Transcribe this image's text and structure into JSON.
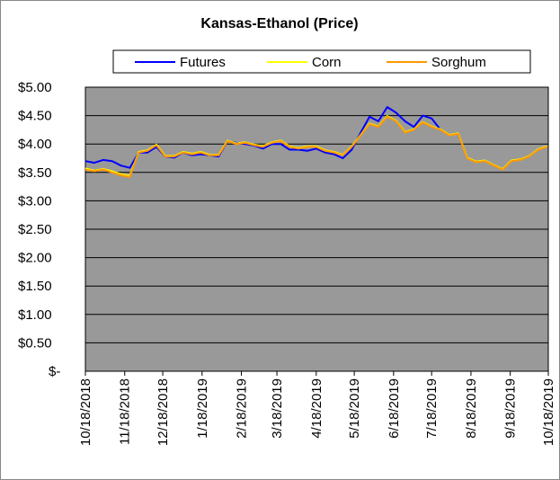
{
  "chart_data": {
    "type": "line",
    "title": "Kansas-Ethanol (Price)",
    "x": [
      "10/18/2018",
      "10/25/2018",
      "11/1/2018",
      "11/8/2018",
      "11/15/2018",
      "11/22/2018",
      "11/29/2018",
      "12/6/2018",
      "12/13/2018",
      "12/20/2018",
      "12/27/2018",
      "1/3/2019",
      "1/10/2019",
      "1/17/2019",
      "1/24/2019",
      "1/31/2019",
      "2/7/2019",
      "2/14/2019",
      "2/21/2019",
      "2/28/2019",
      "3/7/2019",
      "3/14/2019",
      "3/21/2019",
      "3/28/2019",
      "4/4/2019",
      "4/11/2019",
      "4/18/2019",
      "4/25/2019",
      "5/2/2019",
      "5/9/2019",
      "5/16/2019",
      "5/23/2019",
      "5/30/2019",
      "6/6/2019",
      "6/13/2019",
      "6/20/2019",
      "6/27/2019",
      "7/4/2019",
      "7/11/2019",
      "7/18/2019",
      "7/25/2019",
      "8/1/2019",
      "8/8/2019",
      "8/15/2019",
      "8/22/2019",
      "8/29/2019",
      "9/5/2019",
      "9/12/2019",
      "9/19/2019",
      "9/26/2019",
      "10/3/2019",
      "10/10/2019",
      "10/17/2019"
    ],
    "series": [
      {
        "name": "Futures",
        "color": "#0000ff",
        "values": [
          3.7,
          3.67,
          3.72,
          3.7,
          3.62,
          3.58,
          3.85,
          3.85,
          3.95,
          3.78,
          3.76,
          3.85,
          3.8,
          3.82,
          3.8,
          3.78,
          4.05,
          4.02,
          4.0,
          3.97,
          3.92,
          4.0,
          4.0,
          3.9,
          3.9,
          3.88,
          3.92,
          3.85,
          3.82,
          3.75,
          3.9,
          4.2,
          4.48,
          4.4,
          4.65,
          4.55,
          4.4,
          4.3,
          4.5,
          4.45,
          4.25,
          null,
          null,
          null,
          null,
          null,
          null,
          null,
          null,
          null,
          null,
          null,
          null
        ]
      },
      {
        "name": "Corn",
        "color": "#ffff00",
        "values": [
          3.57,
          3.53,
          3.56,
          3.52,
          3.47,
          3.44,
          3.86,
          3.89,
          3.99,
          3.79,
          3.79,
          3.86,
          3.83,
          3.86,
          3.81,
          3.81,
          4.06,
          4.01,
          4.03,
          3.99,
          3.96,
          4.03,
          4.06,
          3.96,
          3.93,
          3.96,
          3.96,
          3.89,
          3.86,
          3.81,
          3.96,
          4.16,
          4.36,
          4.31,
          4.49,
          4.41,
          4.21,
          4.26,
          4.39,
          4.31,
          4.26,
          4.16,
          4.19,
          3.76,
          3.69,
          3.71,
          3.63,
          3.56,
          3.71,
          3.73,
          3.79,
          3.91,
          3.96
        ]
      },
      {
        "name": "Sorghum",
        "color": "#ff9900",
        "values": [
          3.55,
          3.52,
          3.55,
          3.5,
          3.45,
          3.42,
          3.85,
          3.88,
          3.98,
          3.78,
          3.78,
          3.85,
          3.82,
          3.85,
          3.8,
          3.8,
          4.05,
          4.0,
          4.02,
          3.98,
          3.95,
          4.02,
          4.05,
          3.95,
          3.92,
          3.95,
          3.95,
          3.88,
          3.85,
          3.8,
          3.95,
          4.15,
          4.35,
          4.3,
          4.48,
          4.4,
          4.2,
          4.25,
          4.38,
          4.3,
          4.25,
          4.15,
          4.18,
          3.75,
          3.68,
          3.7,
          3.62,
          3.55,
          3.7,
          3.72,
          3.78,
          3.9,
          3.95
        ]
      }
    ],
    "xlim": [
      "10/18/2018",
      "10/18/2019"
    ],
    "xticks": [
      "10/18/2018",
      "11/18/2018",
      "12/18/2018",
      "1/18/2019",
      "2/18/2019",
      "3/18/2019",
      "4/18/2019",
      "5/18/2019",
      "6/18/2019",
      "7/18/2019",
      "8/18/2019",
      "9/18/2019",
      "10/18/2019"
    ],
    "ylim": [
      0,
      5
    ],
    "yticks": [
      {
        "value": 0,
        "label": "$-"
      },
      {
        "value": 0.5,
        "label": "$0.50"
      },
      {
        "value": 1,
        "label": "$1.00"
      },
      {
        "value": 1.5,
        "label": "$1.50"
      },
      {
        "value": 2,
        "label": "$2.00"
      },
      {
        "value": 2.5,
        "label": "$2.50"
      },
      {
        "value": 3,
        "label": "$3.00"
      },
      {
        "value": 3.5,
        "label": "$3.50"
      },
      {
        "value": 4,
        "label": "$4.00"
      },
      {
        "value": 4.5,
        "label": "$4.50"
      },
      {
        "value": 5,
        "label": "$5.00"
      }
    ],
    "grid": true,
    "plot_background": "#999999"
  }
}
